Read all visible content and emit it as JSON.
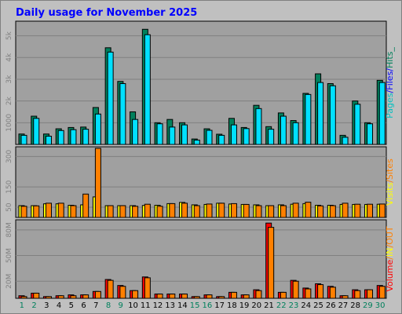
{
  "chart_data": [
    {
      "type": "bar",
      "panel": "hits-files-pages",
      "title": "Daily usage for November 2025",
      "ylabel": "Pages / Files / Hits",
      "ylabel_parts": [
        "Pages",
        "/",
        "Files",
        "/",
        "Hits",
        "_"
      ],
      "yticks": [
        "1000",
        "2k",
        "3k",
        "4k",
        "5k"
      ],
      "ylim": [
        0,
        5600
      ],
      "series": [
        {
          "name": "Hits",
          "color": "#00805c",
          "values": [
            480,
            1300,
            480,
            720,
            780,
            800,
            1700,
            4450,
            2900,
            1500,
            5300,
            1000,
            1150,
            1000,
            250,
            720,
            470,
            1200,
            780,
            1800,
            820,
            1450,
            1100,
            2350,
            3250,
            2800,
            420,
            2000,
            1000,
            2950
          ]
        },
        {
          "name": "Files",
          "color": "#00e0ff",
          "values": [
            420,
            1200,
            380,
            640,
            680,
            700,
            1400,
            4250,
            2800,
            1150,
            5050,
            950,
            800,
            900,
            200,
            650,
            420,
            900,
            730,
            1650,
            700,
            1300,
            1000,
            2300,
            2850,
            2700,
            330,
            1850,
            950,
            2850
          ]
        }
      ]
    },
    {
      "type": "bar",
      "panel": "visits-sites",
      "ylabel": "Visits / Sites",
      "ylabel_parts": [
        "Visits",
        "/",
        "Sites"
      ],
      "yticks": [
        "50",
        "150",
        "300"
      ],
      "ylim": [
        0,
        340
      ],
      "series": [
        {
          "name": "Visits",
          "color": "#ffff00",
          "values": [
            58,
            58,
            67,
            67,
            60,
            62,
            101,
            58,
            58,
            58,
            59,
            60,
            68,
            74,
            62,
            64,
            70,
            66,
            64,
            62,
            58,
            62,
            65,
            68,
            60,
            60,
            64,
            64,
            64,
            65
          ]
        },
        {
          "name": "Sites",
          "color": "#ff8000",
          "values": [
            55,
            57,
            70,
            70,
            58,
            115,
            340,
            58,
            58,
            55,
            65,
            55,
            68,
            70,
            58,
            66,
            70,
            68,
            64,
            58,
            58,
            58,
            70,
            75,
            57,
            58,
            70,
            65,
            65,
            66
          ]
        }
      ]
    },
    {
      "type": "bar",
      "panel": "volume-in-out",
      "ylabel": "Volume / IN / OUT",
      "ylabel_parts": [
        "Volume",
        "/",
        "IN",
        "/",
        "OUT"
      ],
      "yticks": [
        "20M",
        "50M",
        "80M"
      ],
      "ylim": [
        0,
        90
      ],
      "series": [
        {
          "name": "Volume",
          "color": "#ff0000",
          "values": [
            3,
            6,
            2,
            3,
            4,
            4,
            8,
            22,
            15,
            9,
            25,
            5,
            5,
            5,
            2,
            4,
            2,
            7,
            4,
            10,
            88,
            7,
            21,
            12,
            17,
            14,
            3,
            10,
            10,
            15
          ]
        },
        {
          "name": "IN",
          "color": "#ff8000",
          "values": [
            2,
            6,
            2,
            3,
            3,
            4,
            8,
            21,
            14,
            9,
            24,
            5,
            5,
            5,
            2,
            4,
            2,
            7,
            4,
            9,
            83,
            7,
            20,
            11,
            16,
            13,
            3,
            9,
            10,
            14
          ]
        }
      ]
    }
  ],
  "x_days": [
    "1",
    "2",
    "3",
    "4",
    "5",
    "6",
    "7",
    "8",
    "9",
    "10",
    "11",
    "12",
    "13",
    "14",
    "15",
    "16",
    "17",
    "18",
    "19",
    "20",
    "21",
    "22",
    "23",
    "24",
    "25",
    "26",
    "27",
    "28",
    "29",
    "30"
  ],
  "weekend_days": [
    "1",
    "2",
    "8",
    "9",
    "15",
    "16",
    "22",
    "23",
    "29",
    "30"
  ],
  "colors": {
    "background": "#c0c0c0",
    "plot_area": "#a0a0a0",
    "title": "#0000ff",
    "weekday_label": "#000000",
    "weekend_label": "#00805c",
    "tick_label": "#808080",
    "gridline": "#808080",
    "bar_outline": "#000000",
    "label_pages": "#00c0c0",
    "label_slash": "#0000ff",
    "label_files": "#0000ff",
    "label_hits": "#00805c",
    "label_visits": "#ffff00",
    "label_sites": "#ff8000",
    "label_volume": "#ff0000",
    "label_in": "#ffff00",
    "label_out": "#ff8000"
  }
}
